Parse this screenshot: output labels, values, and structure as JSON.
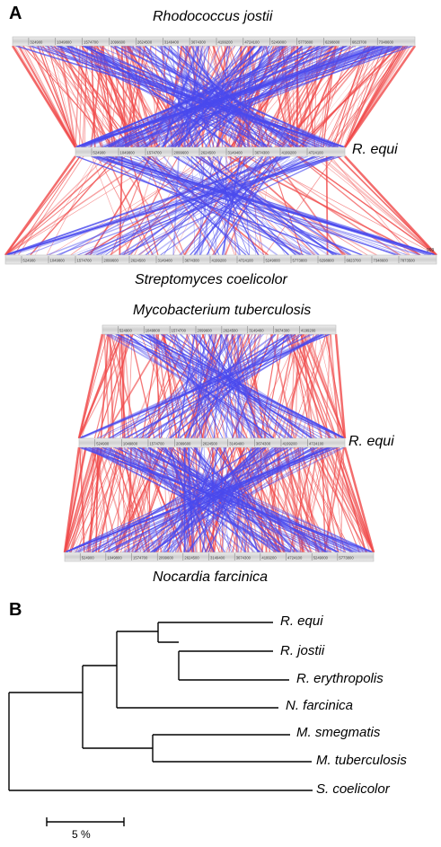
{
  "panels": {
    "a_label": "A",
    "b_label": "B"
  },
  "panel_a": {
    "rhodococcus_jostii": "Rhodococcus jostii",
    "r_equi_top": "R. equi",
    "streptomyces": "Streptomyces coelicolor",
    "mycobacterium": "Mycobacterium tuberculosis",
    "r_equi_bottom": "R. equi",
    "nocardia": "Nocardia farcinica",
    "tracks": {
      "jostii_ticks": [
        "324900",
        "1049800",
        "1574700",
        "2099600",
        "2624500",
        "3149400",
        "3674300",
        "4199200",
        "4724100",
        "5249000",
        "5773800",
        "6298800",
        "6823700",
        "7348600"
      ],
      "equi_ticks": [
        "524900",
        "1049800",
        "1574700",
        "2099600",
        "2624500",
        "3149400",
        "3674300",
        "4199200",
        "4724100"
      ],
      "strep_ticks": [
        "524900",
        "1049800",
        "1574700",
        "2099600",
        "2624500",
        "3149400",
        "3674300",
        "4199200",
        "4724100",
        "5249000",
        "5773800",
        "6298800",
        "6823700",
        "7348600",
        "7873500"
      ],
      "strep_end_label": "999",
      "mtb_ticks": [
        "524900",
        "1049800",
        "1574700",
        "2099600",
        "2624500",
        "3149400",
        "3674300",
        "4199200"
      ],
      "equi2_ticks": [
        "524900",
        "1049800",
        "1574700",
        "2099600",
        "2624500",
        "3149400",
        "3674300",
        "4199200",
        "4724100"
      ],
      "nocardia_ticks": [
        "524900",
        "1049800",
        "1574700",
        "2099600",
        "2624500",
        "3149400",
        "3674300",
        "4199200",
        "4724100",
        "5249000",
        "5773800"
      ]
    },
    "colors": {
      "forward_match": "#f04848",
      "reverse_match": "#4a4aee",
      "track_fill": "#d9d9d9"
    }
  },
  "panel_b": {
    "taxa": [
      "R. equi",
      "R. jostii",
      "R. erythropolis",
      "N. farcinica",
      "M. smegmatis",
      "M. tuberculosis",
      "S. coelicolor"
    ],
    "scale_bar_label": "5 %"
  }
}
